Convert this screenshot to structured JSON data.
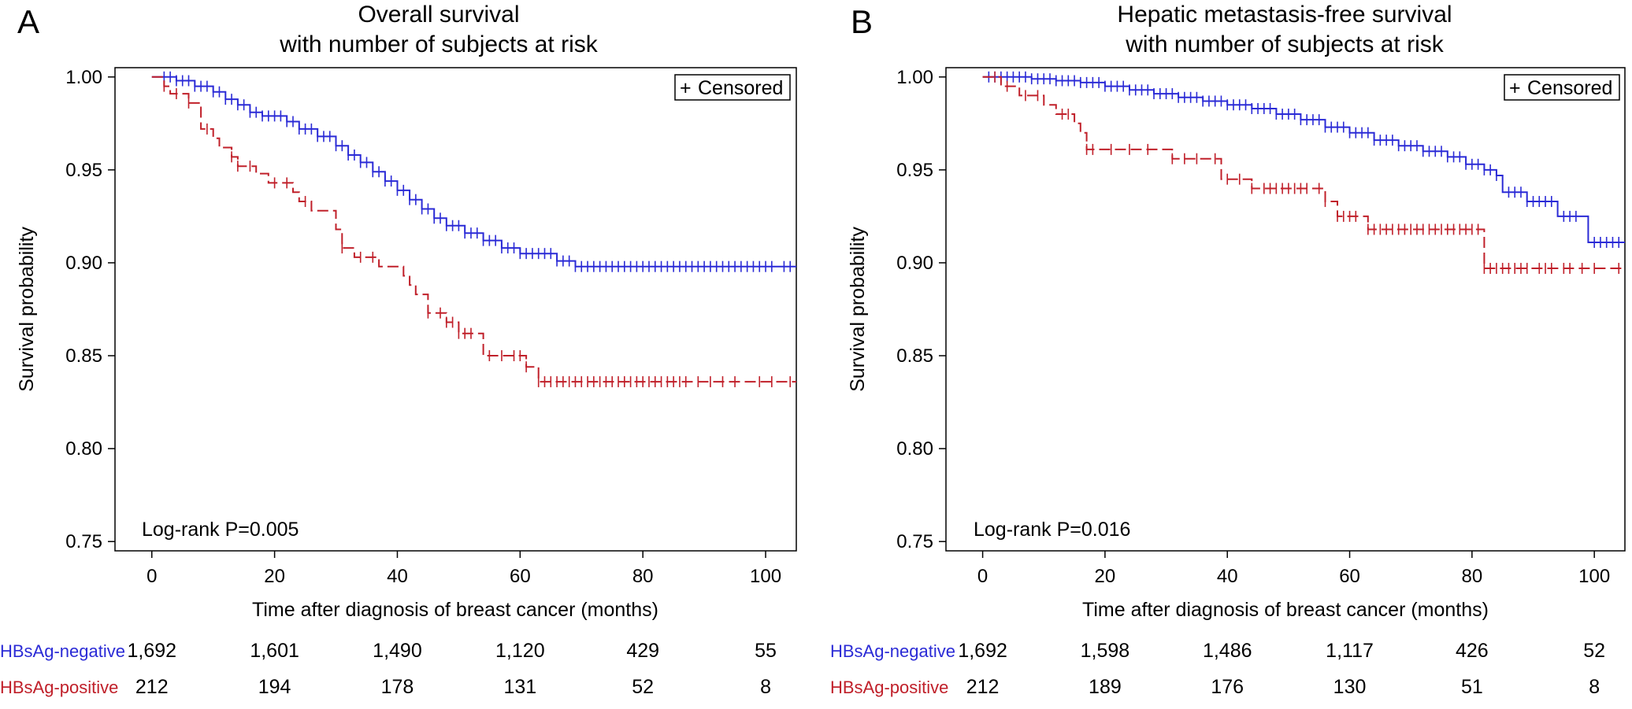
{
  "chart_data": [
    {
      "panel": "A",
      "type": "line",
      "title": [
        "Overall survival",
        "with number of subjects at risk"
      ],
      "xlabel": "Time after diagnosis of breast cancer (months)",
      "ylabel": "Survival probability",
      "xlim": [
        -6,
        105
      ],
      "ylim": [
        0.745,
        1.005
      ],
      "xticks": [
        0,
        20,
        40,
        60,
        80,
        100
      ],
      "yticks": [
        0.75,
        0.8,
        0.85,
        0.9,
        0.95,
        1.0
      ],
      "ytick_labels": [
        "0.75",
        "0.80",
        "0.85",
        "0.90",
        "0.95",
        "1.00"
      ],
      "legend": {
        "text": "Censored",
        "marker": "+",
        "position": "top-right"
      },
      "annotation": "Log-rank P=0.005",
      "series": [
        {
          "name": "HBsAg-negative",
          "color": "#2b2bd6",
          "steps": [
            [
              0,
              1.0
            ],
            [
              4,
              0.998
            ],
            [
              7,
              0.995
            ],
            [
              10,
              0.992
            ],
            [
              12,
              0.988
            ],
            [
              14,
              0.985
            ],
            [
              16,
              0.981
            ],
            [
              18,
              0.979
            ],
            [
              22,
              0.976
            ],
            [
              24,
              0.972
            ],
            [
              27,
              0.968
            ],
            [
              30,
              0.963
            ],
            [
              32,
              0.958
            ],
            [
              34,
              0.954
            ],
            [
              36,
              0.949
            ],
            [
              38,
              0.944
            ],
            [
              40,
              0.939
            ],
            [
              42,
              0.934
            ],
            [
              44,
              0.929
            ],
            [
              46,
              0.924
            ],
            [
              48,
              0.92
            ],
            [
              51,
              0.916
            ],
            [
              54,
              0.912
            ],
            [
              57,
              0.908
            ],
            [
              60,
              0.905
            ],
            [
              66,
              0.901
            ],
            [
              69,
              0.898
            ],
            [
              105,
              0.898
            ]
          ],
          "censor_x": [
            2,
            3,
            4,
            5,
            6,
            7,
            8,
            9,
            10,
            11,
            12,
            13,
            14,
            15,
            16,
            17,
            18,
            19,
            20,
            21,
            22,
            23,
            24,
            25,
            26,
            27,
            28,
            29,
            30,
            31,
            32,
            33,
            34,
            35,
            36,
            37,
            38,
            39,
            40,
            41,
            42,
            43,
            44,
            45,
            46,
            47,
            48,
            49,
            50,
            51,
            52,
            53,
            54,
            55,
            56,
            57,
            58,
            59,
            60,
            61,
            62,
            63,
            64,
            65,
            66,
            67,
            68,
            69,
            70,
            71,
            72,
            73,
            74,
            75,
            76,
            77,
            78,
            79,
            80,
            81,
            82,
            83,
            84,
            85,
            86,
            87,
            88,
            89,
            90,
            91,
            92,
            93,
            94,
            95,
            96,
            97,
            98,
            99,
            100,
            101,
            103,
            104
          ]
        },
        {
          "name": "HBsAg-positive",
          "color": "#c0202a",
          "steps": [
            [
              0,
              1.0
            ],
            [
              2,
              0.995
            ],
            [
              3,
              0.991
            ],
            [
              6,
              0.986
            ],
            [
              8,
              0.972
            ],
            [
              10,
              0.967
            ],
            [
              11,
              0.962
            ],
            [
              13,
              0.957
            ],
            [
              14,
              0.952
            ],
            [
              17,
              0.948
            ],
            [
              19,
              0.943
            ],
            [
              23,
              0.938
            ],
            [
              24,
              0.933
            ],
            [
              26,
              0.928
            ],
            [
              30,
              0.918
            ],
            [
              31,
              0.908
            ],
            [
              33,
              0.903
            ],
            [
              37,
              0.898
            ],
            [
              41,
              0.893
            ],
            [
              42,
              0.888
            ],
            [
              43,
              0.883
            ],
            [
              45,
              0.873
            ],
            [
              48,
              0.868
            ],
            [
              50,
              0.862
            ],
            [
              54,
              0.85
            ],
            [
              61,
              0.844
            ],
            [
              63,
              0.836
            ],
            [
              105,
              0.836
            ]
          ],
          "censor_x": [
            2,
            4,
            6,
            9,
            13,
            14,
            16,
            20,
            22,
            25,
            31,
            34,
            36,
            45,
            47,
            48,
            49,
            50,
            51,
            52,
            55,
            57,
            59,
            60,
            61,
            63,
            64,
            65,
            66,
            67,
            68,
            69,
            70,
            71,
            72,
            73,
            74,
            75,
            76,
            77,
            78,
            79,
            80,
            81,
            82,
            83,
            84,
            85,
            86,
            87,
            89,
            91,
            93,
            95,
            99,
            101,
            104
          ]
        }
      ],
      "risk_table": {
        "x": [
          0,
          20,
          40,
          60,
          80,
          100
        ],
        "rows": [
          {
            "label": "HBsAg-negative",
            "color": "#2b2bd6",
            "values": [
              "1,692",
              "1,601",
              "1,490",
              "1,120",
              "429",
              "55"
            ]
          },
          {
            "label": "HBsAg-positive",
            "color": "#c0202a",
            "values": [
              "212",
              "194",
              "178",
              "131",
              "52",
              "8"
            ]
          }
        ]
      }
    },
    {
      "panel": "B",
      "type": "line",
      "title": [
        "Hepatic metastasis-free survival",
        "with number of subjects at risk"
      ],
      "xlabel": "Time after diagnosis of breast cancer (months)",
      "ylabel": "Survival probability",
      "xlim": [
        -6,
        105
      ],
      "ylim": [
        0.745,
        1.005
      ],
      "xticks": [
        0,
        20,
        40,
        60,
        80,
        100
      ],
      "yticks": [
        0.75,
        0.8,
        0.85,
        0.9,
        0.95,
        1.0
      ],
      "ytick_labels": [
        "0.75",
        "0.80",
        "0.85",
        "0.90",
        "0.95",
        "1.00"
      ],
      "legend": {
        "text": "Censored",
        "marker": "+",
        "position": "top-right"
      },
      "annotation": "Log-rank P=0.016",
      "series": [
        {
          "name": "HBsAg-negative",
          "color": "#2b2bd6",
          "steps": [
            [
              0,
              1.0
            ],
            [
              8,
              0.999
            ],
            [
              12,
              0.998
            ],
            [
              16,
              0.997
            ],
            [
              20,
              0.995
            ],
            [
              24,
              0.993
            ],
            [
              28,
              0.991
            ],
            [
              32,
              0.989
            ],
            [
              36,
              0.987
            ],
            [
              40,
              0.985
            ],
            [
              44,
              0.983
            ],
            [
              48,
              0.98
            ],
            [
              52,
              0.977
            ],
            [
              56,
              0.973
            ],
            [
              60,
              0.97
            ],
            [
              64,
              0.966
            ],
            [
              68,
              0.963
            ],
            [
              72,
              0.96
            ],
            [
              76,
              0.957
            ],
            [
              79,
              0.953
            ],
            [
              82,
              0.95
            ],
            [
              84,
              0.947
            ],
            [
              85,
              0.938
            ],
            [
              89,
              0.933
            ],
            [
              94,
              0.925
            ],
            [
              99,
              0.911
            ],
            [
              105,
              0.911
            ]
          ],
          "censor_x": [
            1,
            2,
            3,
            4,
            5,
            6,
            7,
            8,
            9,
            10,
            11,
            12,
            13,
            14,
            15,
            16,
            17,
            18,
            19,
            20,
            21,
            22,
            23,
            24,
            25,
            26,
            27,
            28,
            29,
            30,
            31,
            32,
            33,
            34,
            35,
            36,
            37,
            38,
            39,
            40,
            41,
            42,
            43,
            44,
            45,
            46,
            47,
            48,
            49,
            50,
            51,
            52,
            53,
            54,
            55,
            56,
            57,
            58,
            59,
            60,
            61,
            62,
            63,
            64,
            65,
            66,
            67,
            68,
            69,
            70,
            71,
            72,
            73,
            74,
            75,
            76,
            77,
            78,
            79,
            80,
            81,
            82,
            83,
            84,
            86,
            87,
            88,
            89,
            90,
            91,
            92,
            93,
            95,
            96,
            97,
            100,
            101,
            102,
            103,
            104
          ]
        },
        {
          "name": "HBsAg-positive",
          "color": "#c0202a",
          "steps": [
            [
              0,
              1.0
            ],
            [
              3,
              0.995
            ],
            [
              6,
              0.99
            ],
            [
              10,
              0.985
            ],
            [
              12,
              0.98
            ],
            [
              15,
              0.975
            ],
            [
              16,
              0.97
            ],
            [
              17,
              0.961
            ],
            [
              31,
              0.956
            ],
            [
              39,
              0.945
            ],
            [
              44,
              0.94
            ],
            [
              56,
              0.933
            ],
            [
              58,
              0.925
            ],
            [
              63,
              0.918
            ],
            [
              82,
              0.897
            ],
            [
              105,
              0.897
            ]
          ],
          "censor_x": [
            2,
            4,
            7,
            9,
            13,
            14,
            17,
            18,
            21,
            24,
            27,
            31,
            33,
            35,
            38,
            40,
            42,
            44,
            46,
            47,
            48,
            49,
            50,
            51,
            52,
            53,
            55,
            56,
            58,
            59,
            60,
            61,
            63,
            64,
            65,
            66,
            67,
            68,
            69,
            70,
            71,
            72,
            73,
            74,
            75,
            76,
            77,
            78,
            79,
            80,
            81,
            82,
            83,
            84,
            85,
            86,
            87,
            88,
            89,
            91,
            92,
            93,
            95,
            96,
            98,
            100,
            104
          ]
        }
      ],
      "risk_table": {
        "x": [
          0,
          20,
          40,
          60,
          80,
          100
        ],
        "rows": [
          {
            "label": "HBsAg-negative",
            "color": "#2b2bd6",
            "values": [
              "1,692",
              "1,598",
              "1,486",
              "1,117",
              "426",
              "52"
            ]
          },
          {
            "label": "HBsAg-positive",
            "color": "#c0202a",
            "values": [
              "212",
              "189",
              "176",
              "130",
              "51",
              "8"
            ]
          }
        ]
      }
    }
  ]
}
